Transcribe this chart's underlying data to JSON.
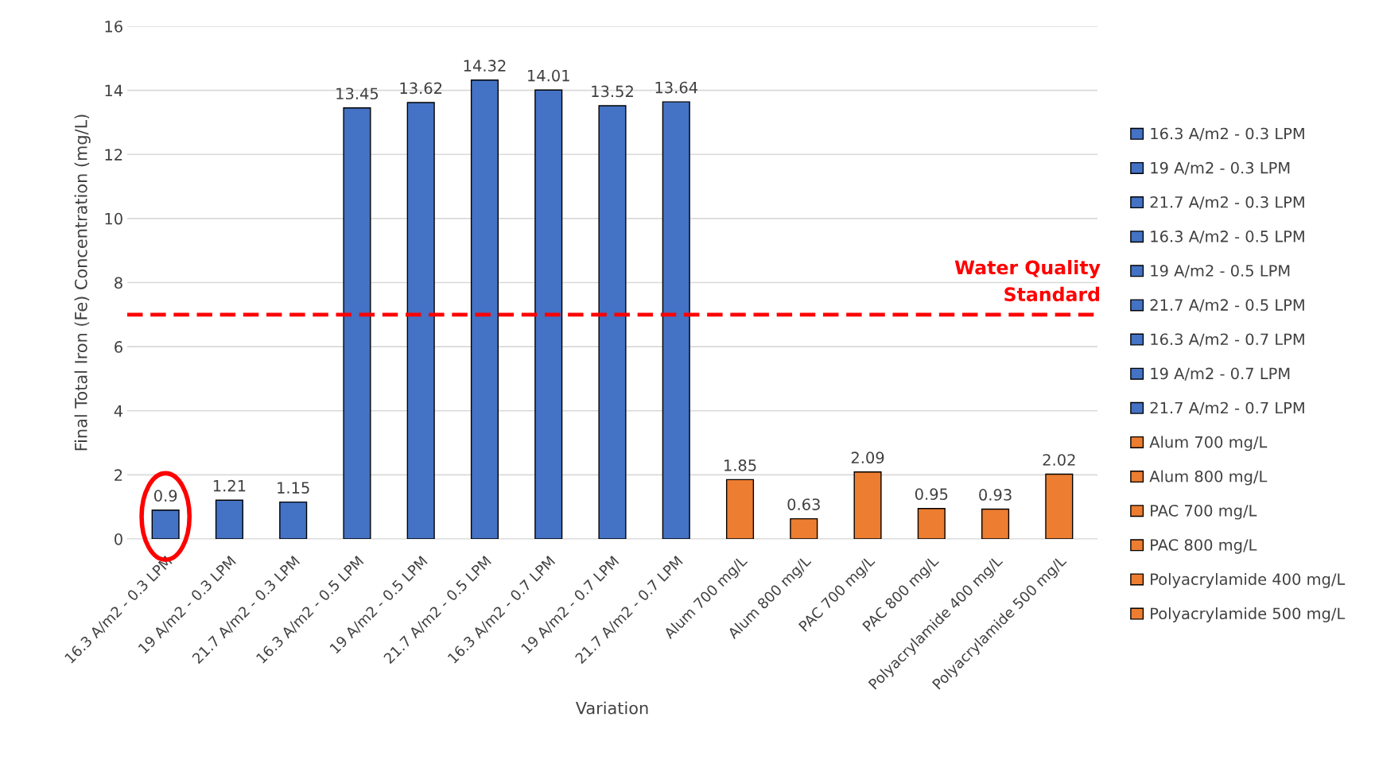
{
  "chart_data": {
    "type": "bar",
    "xlabel": "Variation",
    "ylabel": "Final Total Iron (Fe) Concentration (mg/L)",
    "categories": [
      "16.3 A/m2 - 0.3 LPM",
      "19 A/m2 - 0.3 LPM",
      "21.7 A/m2 - 0.3 LPM",
      "16.3 A/m2 - 0.5 LPM",
      "19 A/m2 - 0.5 LPM",
      "21.7 A/m2 - 0.5 LPM",
      "16.3 A/m2 - 0.7 LPM",
      "19 A/m2 - 0.7 LPM",
      "21.7 A/m2 - 0.7 LPM",
      "Alum 700 mg/L",
      "Alum 800 mg/L",
      "PAC 700 mg/L",
      "PAC 800 mg/L",
      "Polyacrylamide 400 mg/L",
      "Polyacrylamide 500 mg/L"
    ],
    "series": [
      {
        "name": "16.3 A/m2 - 0.3 LPM",
        "color": "#4472c4",
        "values": [
          0.9,
          null,
          null,
          null,
          null,
          null,
          null,
          null,
          null,
          null,
          null,
          null,
          null,
          null,
          null
        ]
      },
      {
        "name": "19 A/m2 - 0.3 LPM",
        "color": "#4472c4",
        "values": [
          null,
          1.21,
          null,
          null,
          null,
          null,
          null,
          null,
          null,
          null,
          null,
          null,
          null,
          null,
          null
        ]
      },
      {
        "name": "21.7 A/m2 - 0.3 LPM",
        "color": "#4472c4",
        "values": [
          null,
          null,
          1.15,
          null,
          null,
          null,
          null,
          null,
          null,
          null,
          null,
          null,
          null,
          null,
          null
        ]
      },
      {
        "name": "16.3 A/m2 - 0.5 LPM",
        "color": "#4472c4",
        "values": [
          null,
          null,
          null,
          13.45,
          null,
          null,
          null,
          null,
          null,
          null,
          null,
          null,
          null,
          null,
          null
        ]
      },
      {
        "name": "19 A/m2 - 0.5 LPM",
        "color": "#4472c4",
        "values": [
          null,
          null,
          null,
          null,
          13.62,
          null,
          null,
          null,
          null,
          null,
          null,
          null,
          null,
          null,
          null
        ]
      },
      {
        "name": "21.7 A/m2 - 0.5 LPM",
        "color": "#4472c4",
        "values": [
          null,
          null,
          null,
          null,
          null,
          14.32,
          null,
          null,
          null,
          null,
          null,
          null,
          null,
          null,
          null
        ]
      },
      {
        "name": "16.3 A/m2 - 0.7 LPM",
        "color": "#4472c4",
        "values": [
          null,
          null,
          null,
          null,
          null,
          null,
          14.01,
          null,
          null,
          null,
          null,
          null,
          null,
          null,
          null
        ]
      },
      {
        "name": "19 A/m2 - 0.7 LPM",
        "color": "#4472c4",
        "values": [
          null,
          null,
          null,
          null,
          null,
          null,
          null,
          13.52,
          null,
          null,
          null,
          null,
          null,
          null,
          null
        ]
      },
      {
        "name": "21.7 A/m2 - 0.7 LPM",
        "color": "#4472c4",
        "values": [
          null,
          null,
          null,
          null,
          null,
          null,
          null,
          null,
          13.64,
          null,
          null,
          null,
          null,
          null,
          null
        ]
      },
      {
        "name": "Alum 700 mg/L",
        "color": "#ed7d31",
        "values": [
          null,
          null,
          null,
          null,
          null,
          null,
          null,
          null,
          null,
          1.85,
          null,
          null,
          null,
          null,
          null
        ]
      },
      {
        "name": "Alum 800 mg/L",
        "color": "#ed7d31",
        "values": [
          null,
          null,
          null,
          null,
          null,
          null,
          null,
          null,
          null,
          null,
          0.63,
          null,
          null,
          null,
          null
        ]
      },
      {
        "name": "PAC 700 mg/L",
        "color": "#ed7d31",
        "values": [
          null,
          null,
          null,
          null,
          null,
          null,
          null,
          null,
          null,
          null,
          null,
          2.09,
          null,
          null,
          null
        ]
      },
      {
        "name": "PAC 800 mg/L",
        "color": "#ed7d31",
        "values": [
          null,
          null,
          null,
          null,
          null,
          null,
          null,
          null,
          null,
          null,
          null,
          null,
          0.95,
          null,
          null
        ]
      },
      {
        "name": "Polyacrylamide 400 mg/L",
        "color": "#ed7d31",
        "values": [
          null,
          null,
          null,
          null,
          null,
          null,
          null,
          null,
          null,
          null,
          null,
          null,
          null,
          0.93,
          null
        ]
      },
      {
        "name": "Polyacrylamide 500 mg/L",
        "color": "#ed7d31",
        "values": [
          null,
          null,
          null,
          null,
          null,
          null,
          null,
          null,
          null,
          null,
          null,
          null,
          null,
          null,
          2.02
        ]
      }
    ],
    "ylim": [
      0,
      16
    ],
    "yticks": [
      0,
      2,
      4,
      6,
      8,
      10,
      12,
      14,
      16
    ],
    "grid": "y",
    "data_labels": true,
    "legend": "right",
    "ref_lines": [
      {
        "axis": "y",
        "value": 7,
        "label": "Water Quality\nStandard",
        "color": "#ff0000",
        "line_style": "dashed"
      }
    ]
  }
}
